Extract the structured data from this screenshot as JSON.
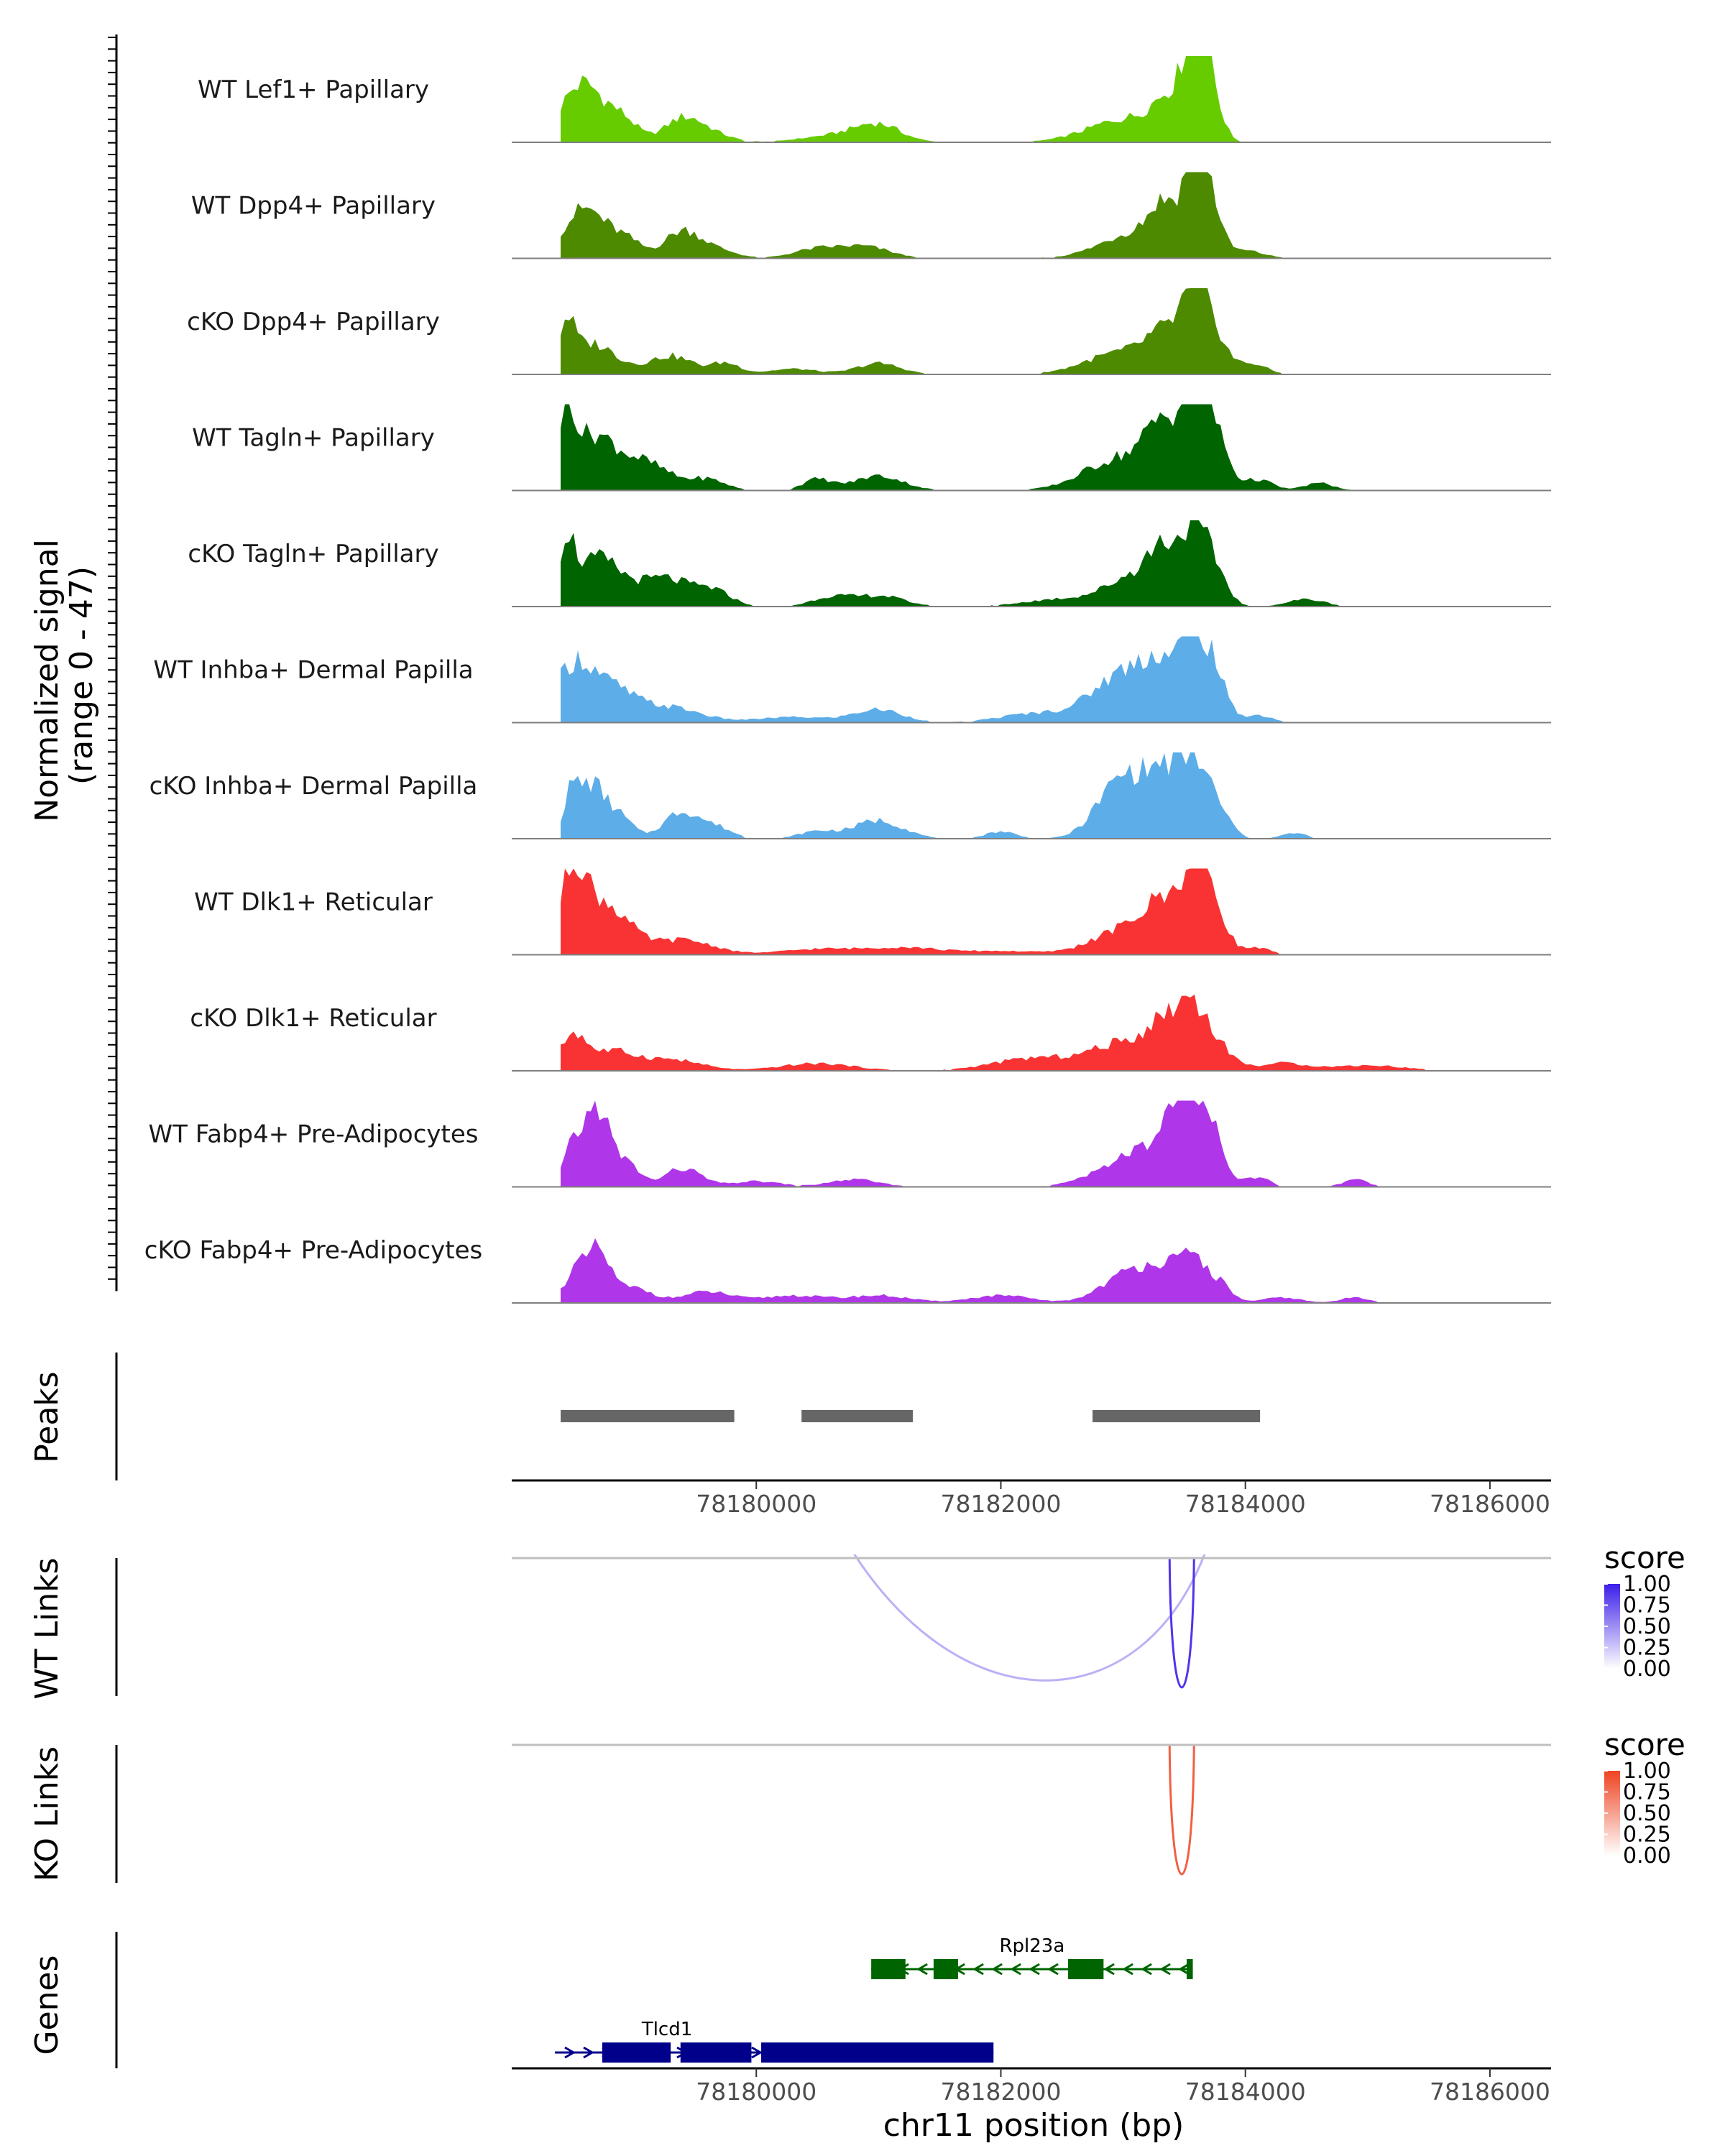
{
  "chart_data": {
    "type": "area",
    "title": "",
    "region": {
      "chrom": "chr11",
      "start": 78178000,
      "end": 78186500
    },
    "coverage": {
      "ylabel": "Normalized signal\n(range 0 - 47)",
      "ylim": [
        0,
        47
      ],
      "tracks": [
        {
          "name": "WT Lef1+ Papillary",
          "color": "#66CC00",
          "from": 78178400,
          "to": 78185900,
          "peaks": [
            [
              78178580,
              32,
              180
            ],
            [
              78178920,
              10,
              120
            ],
            [
              78179400,
              13,
              150
            ],
            [
              78179650,
              4,
              150
            ],
            [
              78180700,
              4,
              300
            ],
            [
              78181000,
              8,
              180
            ],
            [
              78183050,
              13,
              320
            ],
            [
              78183400,
              20,
              140
            ],
            [
              78183580,
              47,
              80
            ],
            [
              78183700,
              32,
              90
            ]
          ]
        },
        {
          "name": "WT Dpp4+ Papillary",
          "color": "#4D8A00",
          "from": 78178400,
          "to": 78184500,
          "peaks": [
            [
              78178600,
              27,
              180
            ],
            [
              78178950,
              8,
              120
            ],
            [
              78179400,
              15,
              150
            ],
            [
              78179700,
              4,
              150
            ],
            [
              78180500,
              5,
              200
            ],
            [
              78180900,
              6,
              200
            ],
            [
              78183150,
              15,
              300
            ],
            [
              78183350,
              20,
              120
            ],
            [
              78183580,
              44,
              80
            ],
            [
              78183700,
              32,
              90
            ],
            [
              78184000,
              4,
              150
            ]
          ]
        },
        {
          "name": "cKO Dpp4+ Papillary",
          "color": "#4D8A00",
          "from": 78178400,
          "to": 78184300,
          "peaks": [
            [
              78178450,
              22,
              60
            ],
            [
              78178650,
              17,
              200
            ],
            [
              78179300,
              10,
              180
            ],
            [
              78179750,
              6,
              120
            ],
            [
              78180300,
              3,
              200
            ],
            [
              78181000,
              6,
              180
            ],
            [
              78183000,
              12,
              300
            ],
            [
              78183350,
              18,
              150
            ],
            [
              78183580,
              38,
              100
            ],
            [
              78183750,
              20,
              100
            ],
            [
              78184050,
              6,
              120
            ]
          ]
        },
        {
          "name": "WT Tagln+ Papillary",
          "color": "#006400",
          "from": 78178400,
          "to": 78184900,
          "peaks": [
            [
              78178450,
              35,
              60
            ],
            [
              78178650,
              30,
              200
            ],
            [
              78179100,
              14,
              200
            ],
            [
              78179600,
              6,
              150
            ],
            [
              78180500,
              6,
              120
            ],
            [
              78181000,
              8,
              200
            ],
            [
              78183000,
              18,
              300
            ],
            [
              78183350,
              30,
              150
            ],
            [
              78183580,
              47,
              90
            ],
            [
              78183750,
              32,
              100
            ],
            [
              78184100,
              6,
              120
            ],
            [
              78184600,
              4,
              120
            ]
          ]
        },
        {
          "name": "cKO Tagln+ Papillary",
          "color": "#006400",
          "from": 78178400,
          "to": 78186000,
          "peaks": [
            [
              78178450,
              30,
              60
            ],
            [
              78178700,
              26,
              200
            ],
            [
              78179250,
              15,
              200
            ],
            [
              78179650,
              8,
              150
            ],
            [
              78180600,
              5,
              150
            ],
            [
              78181000,
              6,
              200
            ],
            [
              78182500,
              4,
              300
            ],
            [
              78183150,
              18,
              250
            ],
            [
              78183350,
              22,
              120
            ],
            [
              78183580,
              37,
              90
            ],
            [
              78183750,
              20,
              100
            ],
            [
              78184500,
              4,
              150
            ]
          ]
        },
        {
          "name": "WT Inhba+ Dermal Papilla",
          "color": "#5DADE8",
          "from": 78178400,
          "to": 78184900,
          "peaks": [
            [
              78178500,
              28,
              150
            ],
            [
              78178800,
              18,
              200
            ],
            [
              78179300,
              8,
              250
            ],
            [
              78180300,
              3,
              300
            ],
            [
              78181000,
              7,
              200
            ],
            [
              78182300,
              5,
              300
            ],
            [
              78183000,
              26,
              250
            ],
            [
              78183300,
              22,
              150
            ],
            [
              78183580,
              40,
              120
            ],
            [
              78183750,
              20,
              100
            ],
            [
              78184100,
              4,
              120
            ]
          ]
        },
        {
          "name": "cKO Inhba+ Dermal Papilla",
          "color": "#5DADE8",
          "from": 78178400,
          "to": 78185200,
          "peaks": [
            [
              78178480,
              18,
              60
            ],
            [
              78178650,
              30,
              120
            ],
            [
              78178900,
              10,
              100
            ],
            [
              78179400,
              15,
              150
            ],
            [
              78179700,
              5,
              120
            ],
            [
              78180500,
              4,
              150
            ],
            [
              78181000,
              10,
              200
            ],
            [
              78182000,
              4,
              120
            ],
            [
              78183000,
              33,
              200
            ],
            [
              78183350,
              30,
              150
            ],
            [
              78183600,
              35,
              120
            ],
            [
              78183800,
              10,
              100
            ],
            [
              78184400,
              3,
              100
            ]
          ]
        },
        {
          "name": "WT Dlk1+ Reticular",
          "color": "#F93333",
          "from": 78178400,
          "to": 78184800,
          "peaks": [
            [
              78178500,
              40,
              100
            ],
            [
              78178750,
              28,
              200
            ],
            [
              78179400,
              8,
              250
            ],
            [
              78180500,
              3,
              300
            ],
            [
              78181200,
              4,
              300
            ],
            [
              78182000,
              2,
              300
            ],
            [
              78183100,
              16,
              300
            ],
            [
              78183350,
              20,
              140
            ],
            [
              78183580,
              41,
              90
            ],
            [
              78183750,
              25,
              100
            ],
            [
              78184100,
              4,
              100
            ]
          ]
        },
        {
          "name": "cKO Dlk1+ Reticular",
          "color": "#F93333",
          "from": 78178400,
          "to": 78186000,
          "peaks": [
            [
              78178500,
              18,
              100
            ],
            [
              78178800,
              10,
              200
            ],
            [
              78179300,
              6,
              250
            ],
            [
              78180500,
              4,
              300
            ],
            [
              78182300,
              7,
              350
            ],
            [
              78183000,
              14,
              250
            ],
            [
              78183350,
              22,
              150
            ],
            [
              78183580,
              30,
              120
            ],
            [
              78183800,
              10,
              120
            ],
            [
              78184300,
              4,
              200
            ],
            [
              78185000,
              3,
              300
            ]
          ]
        },
        {
          "name": "WT Fabp4+ Pre-Adipocytes",
          "color": "#AF36E9",
          "from": 78178400,
          "to": 78185100,
          "peaks": [
            [
              78178500,
              20,
              80
            ],
            [
              78178700,
              44,
              100
            ],
            [
              78178950,
              12,
              100
            ],
            [
              78179400,
              10,
              150
            ],
            [
              78180000,
              3,
              200
            ],
            [
              78180800,
              4,
              200
            ],
            [
              78182800,
              5,
              200
            ],
            [
              78183200,
              18,
              250
            ],
            [
              78183400,
              25,
              120
            ],
            [
              78183580,
              38,
              100
            ],
            [
              78183750,
              22,
              100
            ],
            [
              78184100,
              5,
              100
            ],
            [
              78184900,
              4,
              100
            ]
          ]
        },
        {
          "name": "cKO Fabp4+ Pre-Adipocytes",
          "color": "#AF36E9",
          "from": 78178400,
          "to": 78185100,
          "peaks": [
            [
              78178500,
              15,
              80
            ],
            [
              78178700,
              28,
              100
            ],
            [
              78179000,
              8,
              150
            ],
            [
              78179600,
              6,
              200
            ],
            [
              78180300,
              4,
              250
            ],
            [
              78181000,
              4,
              250
            ],
            [
              78182000,
              4,
              250
            ],
            [
              78183000,
              14,
              200
            ],
            [
              78183300,
              17,
              150
            ],
            [
              78183580,
              22,
              120
            ],
            [
              78183800,
              8,
              100
            ],
            [
              78184300,
              3,
              150
            ],
            [
              78184900,
              3,
              120
            ]
          ]
        }
      ]
    },
    "peaks_track": {
      "label": "Peaks",
      "ranges": [
        [
          78178400,
          78179820
        ],
        [
          78180370,
          78181280
        ],
        [
          78182750,
          78184120
        ]
      ]
    },
    "x_axis": {
      "xlabel": "chr11 position (bp)",
      "ticks": [
        78180000,
        78182000,
        78184000,
        78186000
      ]
    },
    "links": [
      {
        "label": "WT Links",
        "colors": [
          "#FFFFFF",
          "#3B1FE8"
        ],
        "arcs": [
          {
            "start": 78180850,
            "end": 78183580,
            "score": 0.35
          },
          {
            "start": 78183380,
            "end": 78183580,
            "score": 0.9
          }
        ]
      },
      {
        "label": "KO Links",
        "colors": [
          "#FFFFFF",
          "#EE4422"
        ],
        "arcs": [
          {
            "start": 78183380,
            "end": 78183580,
            "score": 0.85
          }
        ]
      }
    ],
    "legend": {
      "title": "score",
      "ticks": [
        "1.00",
        "0.75",
        "0.50",
        "0.25",
        "0.00"
      ]
    },
    "genes_track": {
      "label": "Genes",
      "genes": [
        {
          "name": "Rpl23a",
          "color": "#006400",
          "start": 78180940,
          "end": 78183570,
          "strand": "-",
          "exons": [
            [
              78180940,
              78181220
            ],
            [
              78181450,
              78181650
            ],
            [
              78182550,
              78182840
            ],
            [
              78183520,
              78183570
            ]
          ]
        },
        {
          "name": "Tlcd1",
          "color": "#00008B",
          "start": 78178340,
          "end": 78181940,
          "strand": "+",
          "exons": [
            [
              78178740,
              78179300
            ],
            [
              78179380,
              78179960
            ],
            [
              78180040,
              78181940
            ]
          ]
        }
      ]
    }
  }
}
